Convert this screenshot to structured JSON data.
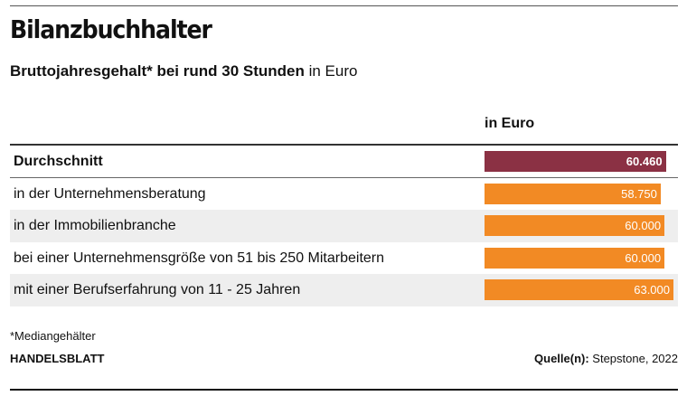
{
  "header": {
    "title": "Bilanzbuchhalter",
    "subtitle_bold": "Bruttojahresgehalt* bei rund 30 Stunden",
    "subtitle_rest": " in Euro"
  },
  "chart_data": {
    "type": "bar",
    "orientation": "horizontal",
    "column_header": "in Euro",
    "categories": [
      "Durchschnitt",
      "in der Unternehmensberatung",
      "in der Immobilienbranche",
      "bei einer Unternehmensgröße von 51 bis 250 Mitarbeitern",
      "mit einer Berufserfahrung von 11 - 25 Jahren"
    ],
    "values": [
      60460,
      58750,
      60000,
      60000,
      63000
    ],
    "value_labels": [
      "60.460",
      "58.750",
      "60.000",
      "60.000",
      "63.000"
    ],
    "xlim": [
      0,
      63000
    ],
    "highlight_color": "#8b3144",
    "bar_color": "#f28a24"
  },
  "footer": {
    "footnote": "*Mediangehälter",
    "publisher": "HANDELSBLATT",
    "source_label": "Quelle(n):",
    "source_text": " Stepstone, 2022"
  }
}
